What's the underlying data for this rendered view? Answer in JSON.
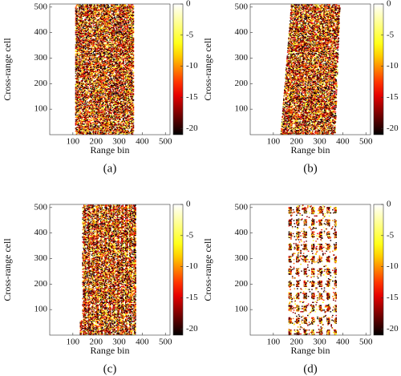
{
  "chart_data": [
    {
      "type": "heatmap",
      "caption": "(a)",
      "x_label": "Range bin",
      "y_label": "Cross-range cell",
      "xlim": [
        0,
        520
      ],
      "ylim": [
        0,
        512
      ],
      "xticks": [
        100,
        200,
        300,
        400,
        500
      ],
      "yticks": [
        100,
        200,
        300,
        400,
        500
      ],
      "colorbar": {
        "lim": [
          -21,
          0
        ],
        "ticks": [
          0,
          -5,
          -10,
          -15,
          -20
        ]
      },
      "colormap": "hot"
    },
    {
      "type": "heatmap",
      "caption": "(b)",
      "x_label": "Range bin",
      "y_label": "Cross-range cell",
      "xlim": [
        0,
        520
      ],
      "ylim": [
        0,
        512
      ],
      "xticks": [
        100,
        200,
        300,
        400,
        500
      ],
      "yticks": [
        100,
        200,
        300,
        400,
        500
      ],
      "colorbar": {
        "lim": [
          -21,
          0
        ],
        "ticks": [
          0,
          -5,
          -10,
          -15,
          -20
        ]
      },
      "colormap": "hot"
    },
    {
      "type": "heatmap",
      "caption": "(c)",
      "x_label": "Range bin",
      "y_label": "Cross-range cell",
      "xlim": [
        0,
        520
      ],
      "ylim": [
        0,
        512
      ],
      "xticks": [
        100,
        200,
        300,
        400,
        500
      ],
      "yticks": [
        100,
        200,
        300,
        400,
        500
      ],
      "colorbar": {
        "lim": [
          -21,
          0
        ],
        "ticks": [
          0,
          -5,
          -10,
          -15,
          -20
        ]
      },
      "colormap": "hot"
    },
    {
      "type": "heatmap",
      "caption": "(d)",
      "x_label": "Range bin",
      "y_label": "Cross-range cell",
      "xlim": [
        0,
        520
      ],
      "ylim": [
        0,
        512
      ],
      "xticks": [
        100,
        200,
        300,
        400,
        500
      ],
      "yticks": [
        100,
        200,
        300,
        400,
        500
      ],
      "colorbar": {
        "lim": [
          -21,
          0
        ],
        "ticks": [
          0,
          -5,
          -10,
          -15,
          -20
        ]
      },
      "colormap": "hot"
    }
  ]
}
